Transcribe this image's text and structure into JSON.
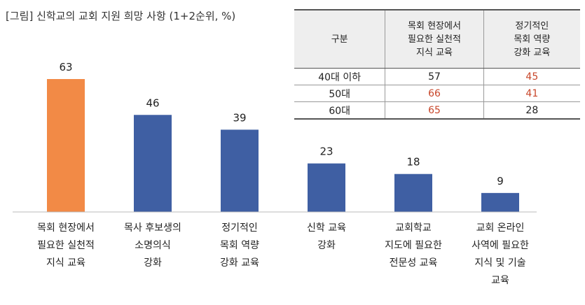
{
  "title": "[그림] 신학교의 교회 지원 희망 사항 (1+2순위, %)",
  "colors": {
    "highlight_bar": "#f28a46",
    "bar": "#3f5fa3",
    "highlight_text": "#c8462a"
  },
  "chart_data": {
    "type": "bar",
    "title": "[그림] 신학교의 교회 지원 희망 사항 (1+2순위, %)",
    "xlabel": "",
    "ylabel": "",
    "categories": [
      "목회 현장에서\n필요한 실천적\n지식 교육",
      "목사 후보생의\n소명의식\n강화",
      "정기적인\n목회 역량\n강화 교육",
      "신학 교육\n강화",
      "교회학교\n지도에 필요한\n전문성 교육",
      "교회 온라인\n사역에 필요한\n지식 및 기술\n교육"
    ],
    "values": [
      63,
      46,
      39,
      23,
      18,
      9
    ],
    "highlight_index": 0,
    "ylim": [
      0,
      70
    ],
    "grid": false,
    "legend": "none"
  },
  "table": {
    "headers": [
      "구분",
      "목회 현장에서\n필요한 실천적\n지식 교육",
      "정기적인\n목회 역량\n강화 교육"
    ],
    "rows": [
      {
        "label": "40대 이하",
        "v1": "57",
        "v2": "45",
        "h1": false,
        "h2": true
      },
      {
        "label": "50대",
        "v1": "66",
        "v2": "41",
        "h1": true,
        "h2": true
      },
      {
        "label": "60대",
        "v1": "65",
        "v2": "28",
        "h1": true,
        "h2": false
      }
    ]
  }
}
